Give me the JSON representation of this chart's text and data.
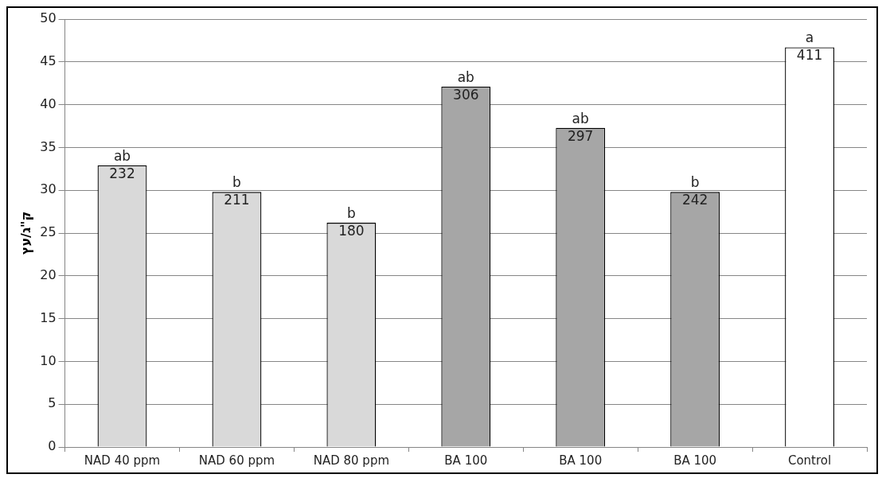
{
  "chart_data": {
    "type": "bar",
    "ylabel": "ק\"ג/עץ",
    "categories": [
      "NAD 40 ppm",
      "NAD 60 ppm",
      "NAD 80 ppm",
      "BA 100",
      "BA 100",
      "BA 100",
      "Control"
    ],
    "values": [
      32.9,
      29.8,
      26.2,
      42.1,
      37.3,
      29.8,
      46.7
    ],
    "colors": [
      "#d9d9d9",
      "#d9d9d9",
      "#d9d9d9",
      "#a6a6a6",
      "#a6a6a6",
      "#a6a6a6",
      "#ffffff"
    ],
    "value_labels": [
      "ab",
      "b",
      "b",
      "ab",
      "ab",
      "b",
      "a"
    ],
    "annotations": [
      "232",
      "211",
      "180",
      "306",
      "297",
      "242",
      "411"
    ],
    "ylim": [
      0,
      50
    ],
    "yticks": [
      0,
      5,
      10,
      15,
      20,
      25,
      30,
      35,
      40,
      45,
      50
    ],
    "grid": "y",
    "legend": false
  }
}
